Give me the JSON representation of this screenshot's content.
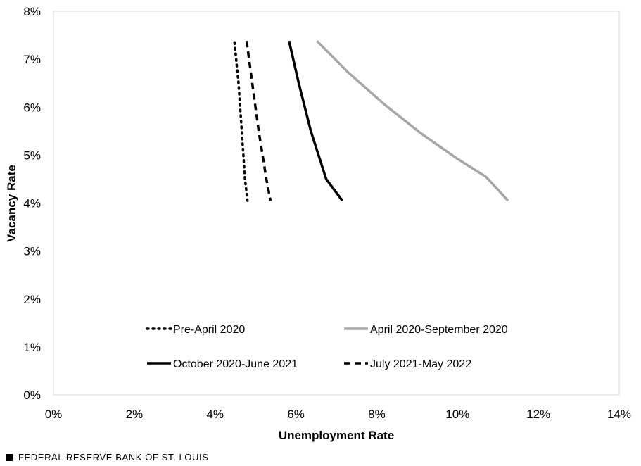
{
  "chart_data": {
    "type": "line",
    "xlabel": "Unemployment Rate",
    "ylabel": "Vacancy Rate",
    "xlim": [
      0,
      14
    ],
    "ylim": [
      0,
      8
    ],
    "x_ticks": [
      "0%",
      "2%",
      "4%",
      "6%",
      "8%",
      "10%",
      "12%",
      "14%"
    ],
    "y_ticks": [
      "0%",
      "1%",
      "2%",
      "3%",
      "4%",
      "5%",
      "6%",
      "7%",
      "8%"
    ],
    "grid": false,
    "legend_position": "inside-bottom",
    "series": [
      {
        "name": "Pre-April 2020",
        "style": "dotted",
        "color": "#000000",
        "points": [
          [
            4.48,
            7.35
          ],
          [
            4.58,
            6.5
          ],
          [
            4.66,
            5.5
          ],
          [
            4.74,
            4.5
          ],
          [
            4.8,
            4.05
          ]
        ]
      },
      {
        "name": "April 2020-September 2020",
        "style": "solid",
        "color": "#a6a6a6",
        "points": [
          [
            6.52,
            7.38
          ],
          [
            7.3,
            6.72
          ],
          [
            8.2,
            6.05
          ],
          [
            9.1,
            5.45
          ],
          [
            10.0,
            4.92
          ],
          [
            10.7,
            4.55
          ],
          [
            11.25,
            4.05
          ]
        ]
      },
      {
        "name": "October 2020-June 2021",
        "style": "solid",
        "color": "#000000",
        "points": [
          [
            5.83,
            7.38
          ],
          [
            6.07,
            6.5
          ],
          [
            6.37,
            5.5
          ],
          [
            6.75,
            4.5
          ],
          [
            7.15,
            4.05
          ]
        ]
      },
      {
        "name": "July 2021-May 2022",
        "style": "dashed",
        "color": "#000000",
        "points": [
          [
            4.78,
            7.38
          ],
          [
            4.92,
            6.5
          ],
          [
            5.08,
            5.5
          ],
          [
            5.27,
            4.5
          ],
          [
            5.37,
            4.05
          ]
        ]
      }
    ]
  },
  "source_note": "FEDERAL RESERVE BANK OF ST. LOUIS"
}
